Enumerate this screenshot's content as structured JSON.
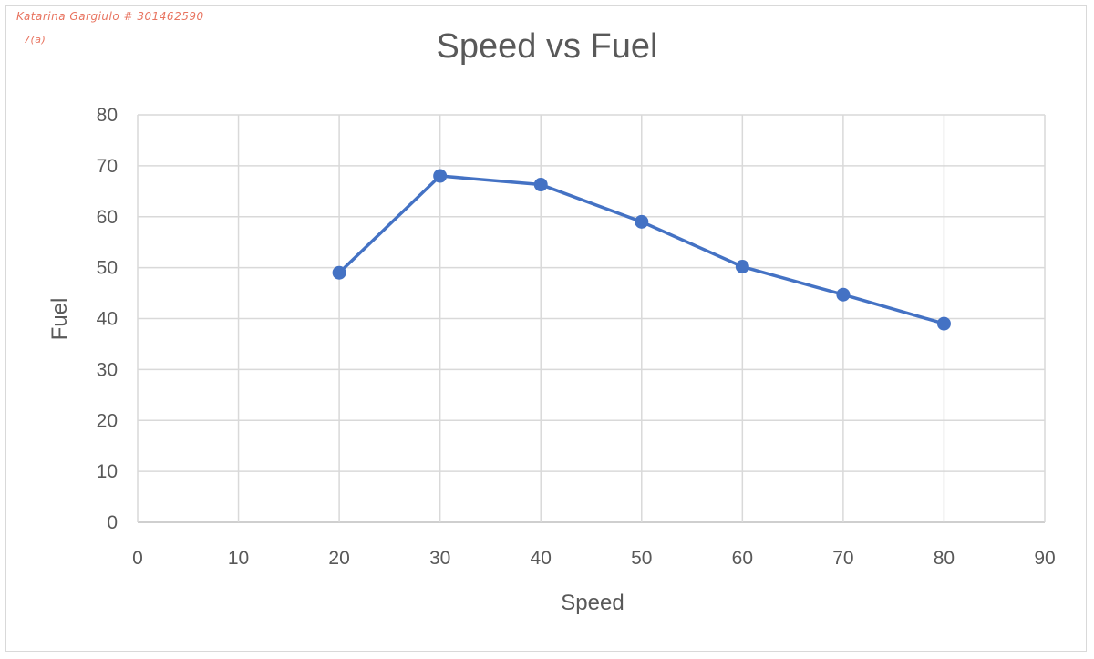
{
  "annotation": {
    "line1": "Katarina Gargiulo # 301462590",
    "line2": "7(a)"
  },
  "chart_data": {
    "type": "scatter",
    "title": "Speed vs Fuel",
    "xlabel": "Speed",
    "ylabel": "Fuel",
    "xlim": [
      0,
      90
    ],
    "ylim": [
      0,
      80
    ],
    "xticks": [
      0,
      10,
      20,
      30,
      40,
      50,
      60,
      70,
      80,
      90
    ],
    "yticks": [
      0,
      10,
      20,
      30,
      40,
      50,
      60,
      70,
      80
    ],
    "grid": true,
    "legend": "none",
    "series": [
      {
        "x": [
          20,
          30,
          40,
          50,
          60,
          70,
          80
        ],
        "y": [
          49,
          68,
          66.3,
          59,
          50.2,
          44.7,
          39
        ],
        "color": "#4472c4",
        "lines": true,
        "markers": true
      }
    ]
  }
}
